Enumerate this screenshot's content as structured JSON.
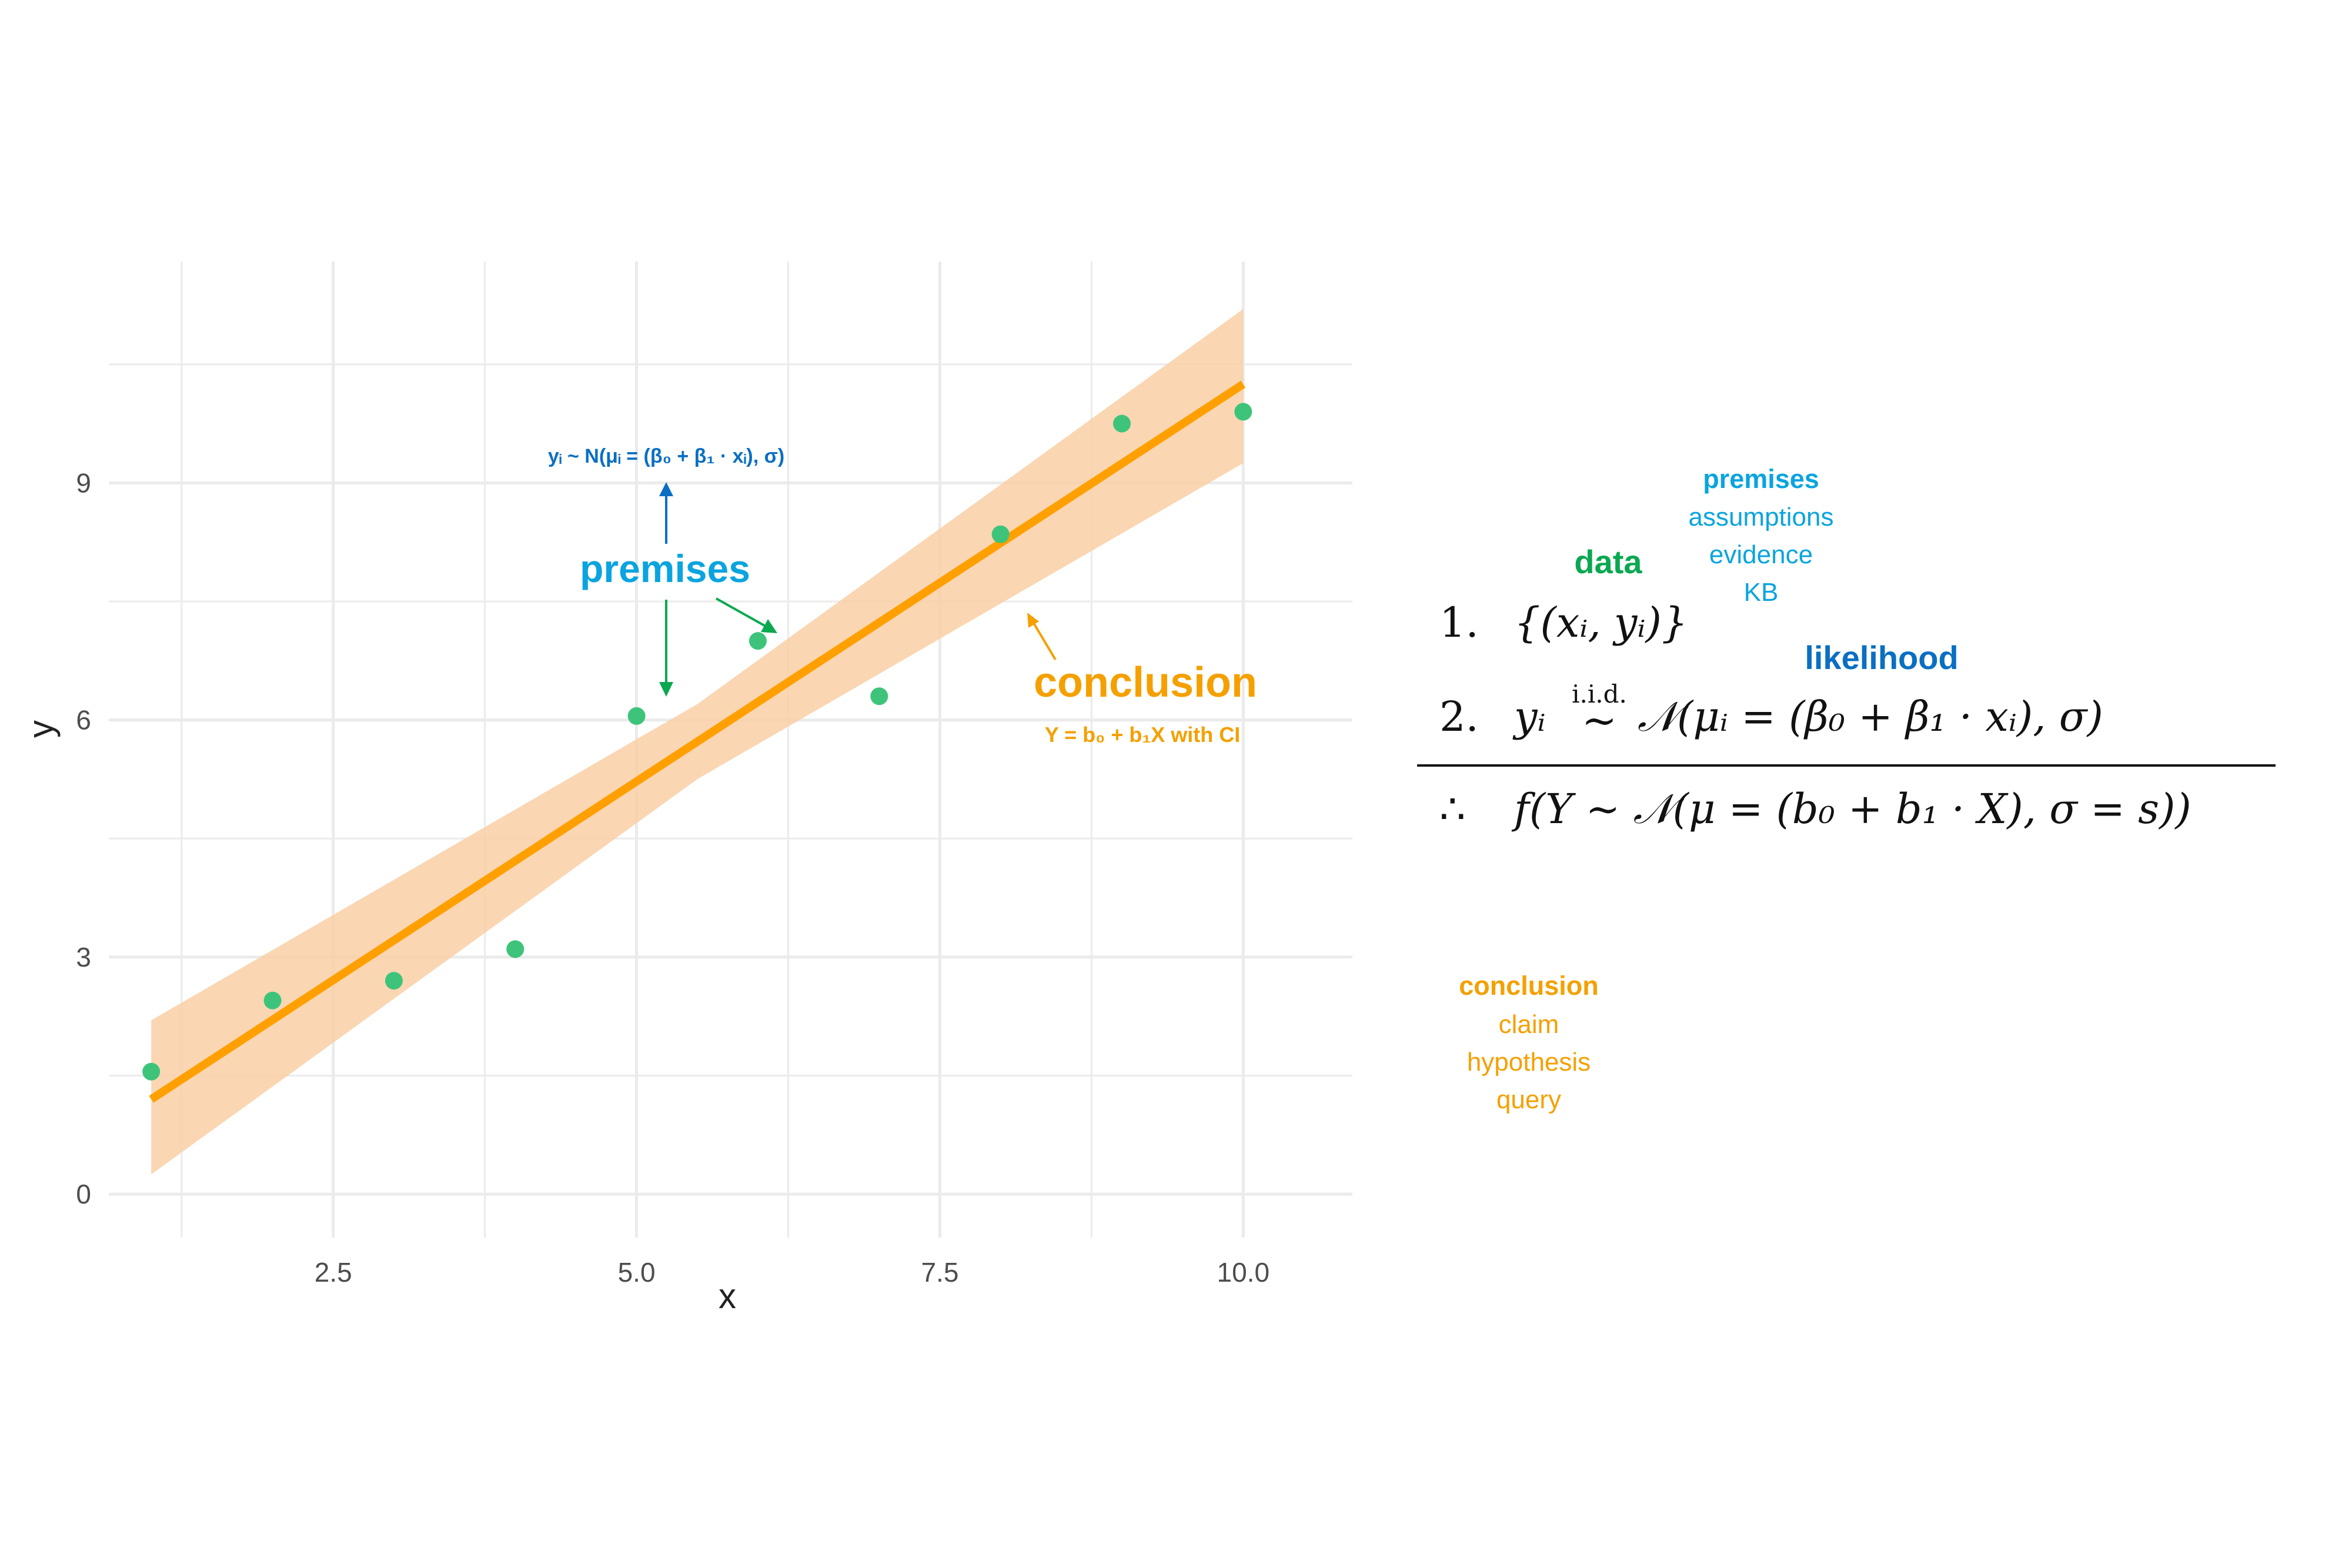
{
  "chart_data": {
    "type": "scatter",
    "xlabel": "x",
    "ylabel": "y",
    "xlim": [
      0.65,
      10.9
    ],
    "ylim": [
      -0.55,
      11.8
    ],
    "x_ticks": [
      2.5,
      5.0,
      7.5,
      10.0
    ],
    "x_tick_labels": [
      "2.5",
      "5.0",
      "7.5",
      "10.0"
    ],
    "y_ticks": [
      0,
      3,
      6,
      9
    ],
    "y_tick_labels": [
      "0",
      "3",
      "6",
      "9"
    ],
    "grid": true,
    "points": [
      {
        "x": 1,
        "y": 1.55
      },
      {
        "x": 2,
        "y": 2.45
      },
      {
        "x": 3,
        "y": 2.7
      },
      {
        "x": 4,
        "y": 3.1
      },
      {
        "x": 5,
        "y": 6.05
      },
      {
        "x": 6,
        "y": 7.0
      },
      {
        "x": 7,
        "y": 6.3
      },
      {
        "x": 8,
        "y": 8.35
      },
      {
        "x": 9,
        "y": 9.75
      },
      {
        "x": 10,
        "y": 9.9
      }
    ],
    "fit_line": {
      "x": [
        1,
        10
      ],
      "y": [
        1.2,
        10.25
      ]
    },
    "ci_band": {
      "x": [
        1,
        5.5,
        10
      ],
      "lower": [
        0.25,
        5.25,
        9.25
      ],
      "upper": [
        2.2,
        6.2,
        11.2
      ]
    },
    "colors": {
      "points": "#3ec47a",
      "line": "#ffa000",
      "band": "#f9cfa6",
      "grid": "#ebebeb",
      "premises": "#0aa4e0",
      "likelihood": "#0a6fc2",
      "data": "#0aa850",
      "conclusion": "#f5a000"
    }
  },
  "annotations": {
    "likelihood_formula": "yᵢ ~ N(μᵢ = (β₀ + β₁ · xᵢ), σ)",
    "premises": "premises",
    "conclusion": "conclusion",
    "conclusion_formula": "Y = b₀ + b₁X with CI"
  },
  "legend_right": {
    "premises_title": "premises",
    "premises_items": [
      "assumptions",
      "evidence",
      "KB"
    ],
    "data": "data",
    "likelihood": "likelihood",
    "conclusion_title": "conclusion",
    "conclusion_items": [
      "claim",
      "hypothesis",
      "query"
    ]
  },
  "argument": {
    "line1_number": "1.",
    "line1": "{(xᵢ, yᵢ)}",
    "line2_number": "2.",
    "line2_lhs": "yᵢ",
    "line2_iid": "i.i.d.",
    "line2_tilde": "~",
    "line2_rhs": "𝒩(μᵢ = (β₀ + β₁ · xᵢ), σ)",
    "therefore": "∴",
    "conclusion_expr": "f(Y ~ 𝒩(μ = (b₀ + b₁ · X), σ = s))"
  }
}
